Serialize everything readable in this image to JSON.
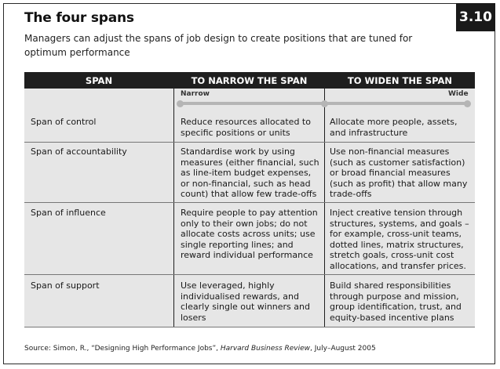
{
  "figure": {
    "title": "The four spans",
    "subtitle": "Managers can adjust the spans of job design to create positions that are tuned for optimum performance",
    "number": "3.10"
  },
  "table": {
    "headers": [
      "SPAN",
      "TO NARROW THE SPAN",
      "TO WIDEN THE SPAN"
    ],
    "scale": {
      "left_label": "Narrow",
      "right_label": "Wide"
    },
    "rows": [
      {
        "span": "Span of control",
        "narrow": "Reduce resources allocated to specific positions or units",
        "widen": "Allocate more people, assets, and infrastructure"
      },
      {
        "span": "Span of accountability",
        "narrow": "Standardise work by using measures (either financial, such as line-item budget expenses, or non-financial, such as head count) that allow few trade-offs",
        "widen": "Use non-financial measures (such as customer satisfaction) or broad financial measures (such as profit) that allow many trade-offs"
      },
      {
        "span": "Span of influence",
        "narrow": "Require people to pay attention only to their own jobs; do not allocate costs across units; use single reporting lines; and reward individual performance",
        "widen": "Inject creative tension through structures, systems, and goals – for example, cross-unit teams, dotted lines, matrix structures, stretch goals, cross-unit cost allocations, and transfer prices."
      },
      {
        "span": "Span of support",
        "narrow": "Use leveraged, highly individualised rewards, and clearly single out winners and losers",
        "widen": "Build shared responsibilities through purpose and mission, group identification, trust, and equity-based incentive plans"
      }
    ]
  },
  "source": {
    "prefix": "Source: Simon, R., “Designing High Performance Jobs”, ",
    "journal": "Harvard Business Review",
    "suffix": ", July–August 2005"
  }
}
